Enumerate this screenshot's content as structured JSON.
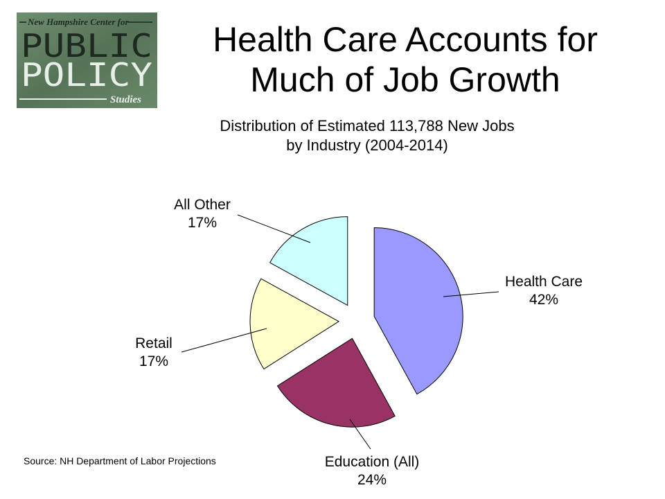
{
  "logo": {
    "top_text": "New Hampshire Center for",
    "word1": "PUBLIC",
    "word2": "POLICY",
    "bottom_text": "Studies",
    "background_color": "#5b7b5e"
  },
  "slide_title": {
    "line1": "Health Care Accounts for",
    "line2": "Much of Job Growth"
  },
  "chart_data": {
    "type": "pie",
    "title_line1": "Distribution of Estimated 113,788 New Jobs",
    "title_line2": "by Industry (2004-2014)",
    "exploded": true,
    "slices": [
      {
        "name": "Health Care",
        "value": 42,
        "value_label": "42%",
        "color": "#9999ff"
      },
      {
        "name": "Education (All)",
        "value": 24,
        "value_label": "24%",
        "color": "#993366"
      },
      {
        "name": "Retail",
        "value": 17,
        "value_label": "17%",
        "color": "#ffffcc"
      },
      {
        "name": "All Other",
        "value": 17,
        "value_label": "17%",
        "color": "#ccffff"
      }
    ]
  },
  "source": "Source: NH Department of Labor Projections"
}
